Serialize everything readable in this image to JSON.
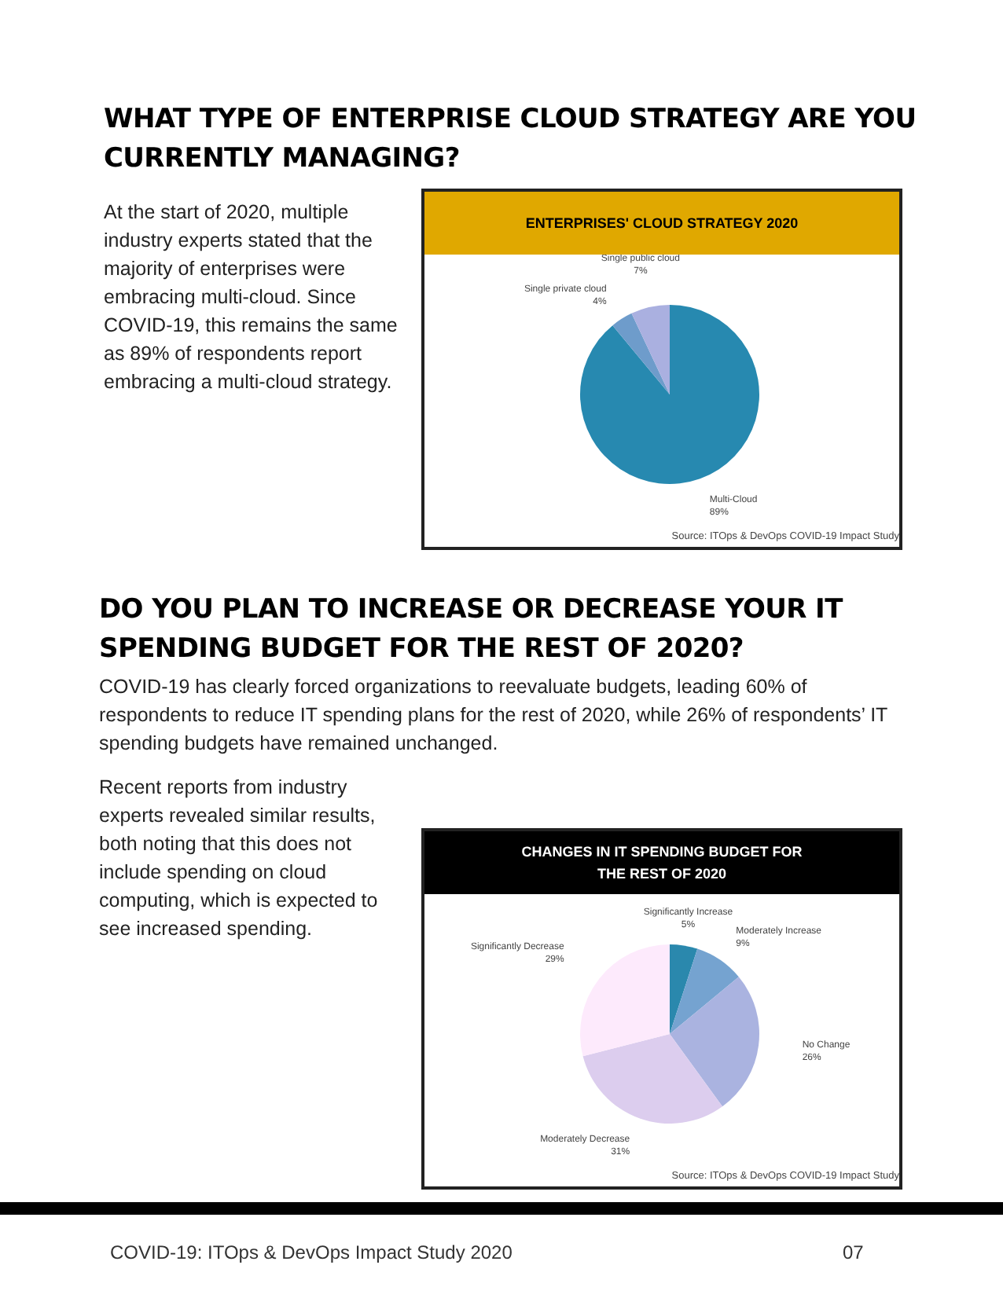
{
  "chart_data": [
    {
      "type": "pie",
      "title": "ENTERPRISES' CLOUD STRATEGY 2020",
      "categories": [
        "Multi-Cloud",
        "Single private cloud",
        "Single public cloud"
      ],
      "values": [
        89,
        4,
        7
      ],
      "value_labels": [
        "89%",
        "4%",
        "7%"
      ],
      "colors": [
        "#2789b0",
        "#6e9ccb",
        "#aab0e0"
      ],
      "annotations": [
        "WHAT TYPE OF ENTERPRISE CLOUD STRATEGY ARE YOU CURRENTLY MANAGING?",
        "At the start of 2020, multiple industry experts stated that the majority of enterprises were embracing multi-cloud. Since COVID-19, this remains the same as 89% of respondents report embracing a multi-cloud strategy.",
        "Source: ITOps & DevOps COVID-19 Impact Study"
      ],
      "legend": false
    },
    {
      "type": "pie",
      "title": "CHANGES IN IT SPENDING BUDGET FOR THE REST OF 2020",
      "categories": [
        "Significantly Increase",
        "Moderately Increase",
        "No Change",
        "Moderately Decrease",
        "Significantly Decrease"
      ],
      "values": [
        5,
        9,
        26,
        31,
        29
      ],
      "value_labels": [
        "5%",
        "9%",
        "26%",
        "31%",
        "29%"
      ],
      "colors": [
        "#2a88ad",
        "#75a3d0",
        "#aab3e0",
        "#dccdee",
        "#fdeafc"
      ],
      "annotations": [
        "DO YOU PLAN TO INCREASE OR DECREASE YOUR IT SPENDING BUDGET FOR THE REST OF 2020?",
        "COVID-19 has clearly forced organizations to reevaluate budgets, leading 60% of respondents to reduce IT spending plans for the rest of 2020, while 26% of respondents’ IT spending budgets have remained unchanged.",
        "Recent reports from industry experts revealed similar results, both noting that this does not include spending on cloud computing, which is expected to see increased spending.",
        "Source: ITOps & DevOps COVID-19 Impact Study",
        "COVID-19: ITOps & DevOps Impact Study 2020",
        "07"
      ],
      "legend": false
    }
  ]
}
